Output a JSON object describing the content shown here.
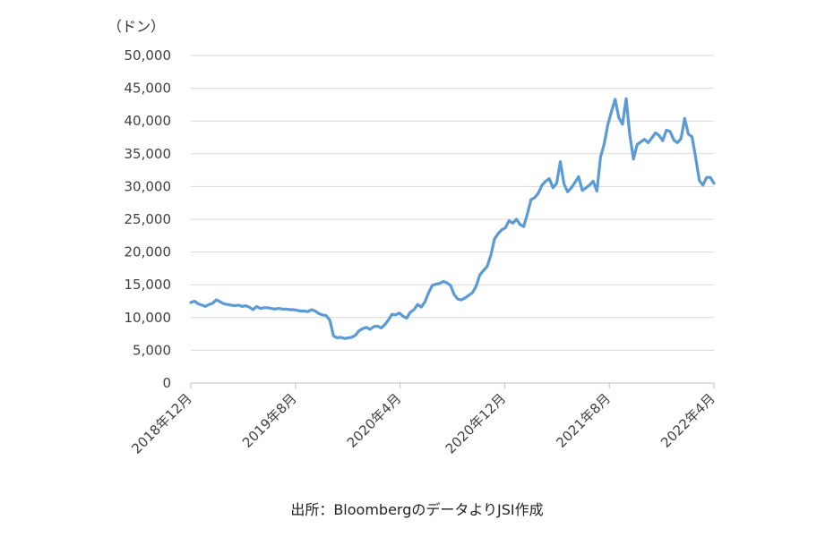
{
  "unit_label": "（ドン）",
  "source_note": "出所：BloombergのデータよりJSI作成",
  "colors": {
    "line": "#5b9bd5",
    "grid": "#d9d9d9"
  },
  "chart_data": {
    "type": "line",
    "ylim": [
      0,
      50000
    ],
    "y_ticks": [
      "0",
      "5,000",
      "10,000",
      "15,000",
      "20,000",
      "25,000",
      "30,000",
      "35,000",
      "40,000",
      "45,000",
      "50,000"
    ],
    "x_tick_labels": [
      "2018年12月",
      "2019年8月",
      "2020年4月",
      "2020年12月",
      "2021年8月",
      "2022年4月"
    ],
    "grid": "horizontal",
    "series": [
      {
        "values": [
          12300,
          12500,
          12100,
          11900,
          11700,
          12000,
          12200,
          12700,
          12400,
          12100,
          12000,
          11900,
          11800,
          11900,
          11700,
          11800,
          11600,
          11200,
          11700,
          11400,
          11500,
          11500,
          11400,
          11300,
          11400,
          11300,
          11300,
          11200,
          11200,
          11100,
          11000,
          11000,
          10900,
          11200,
          11000,
          10600,
          10400,
          10300,
          9600,
          7200,
          6900,
          7000,
          6800,
          6900,
          7000,
          7300,
          8000,
          8300,
          8500,
          8200,
          8600,
          8700,
          8400,
          8900,
          9600,
          10500,
          10400,
          10700,
          10200,
          9900,
          10800,
          11200,
          12000,
          11600,
          12400,
          13800,
          14900,
          15100,
          15200,
          15500,
          15300,
          14900,
          13500,
          12800,
          12700,
          13000,
          13400,
          13800,
          14800,
          16500,
          17200,
          17800,
          19500,
          22000,
          22800,
          23400,
          23700,
          24800,
          24400,
          25000,
          24200,
          23900,
          25800,
          28000,
          28300,
          29000,
          30200,
          30800,
          31200,
          29800,
          30500,
          33800,
          30400,
          29200,
          29800,
          30600,
          31500,
          29400,
          29800,
          30200,
          30800,
          29300,
          34500,
          36500,
          39500,
          41500,
          43300,
          40500,
          39500,
          43400,
          37800,
          34200,
          36400,
          36800,
          37200,
          36700,
          37400,
          38200,
          37800,
          37000,
          38600,
          38400,
          37100,
          36700,
          37300,
          40400,
          38000,
          37600,
          34400,
          30900,
          30200,
          31400,
          31400,
          30500
        ]
      }
    ]
  }
}
